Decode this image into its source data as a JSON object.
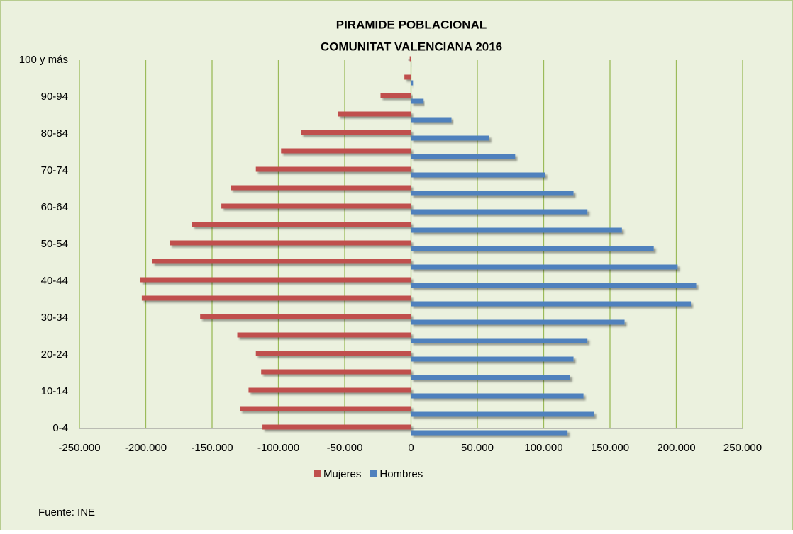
{
  "chart_data": {
    "type": "pyramid",
    "title": "PIRAMIDE POBLACIONAL",
    "subtitle": "COMUNITAT VALENCIANA 2016",
    "categories": [
      "0-4",
      null,
      "10-14",
      null,
      "20-24",
      null,
      "30-34",
      null,
      "40-44",
      null,
      "50-54",
      null,
      "60-64",
      null,
      "70-74",
      null,
      "80-84",
      null,
      "90-94",
      null,
      "100 y más"
    ],
    "series": [
      {
        "name": "Mujeres",
        "color": "#c0504d",
        "values": [
          -112000,
          -129000,
          -122500,
          -113000,
          -117000,
          -131000,
          -159000,
          -203000,
          -204000,
          -195000,
          -182000,
          -165000,
          -143000,
          -136000,
          -117000,
          -98000,
          -83000,
          -55000,
          -23000,
          -5000,
          -1000
        ]
      },
      {
        "name": "Hombres",
        "color": "#4f81bd",
        "values": [
          118000,
          138000,
          130000,
          120000,
          122500,
          133000,
          161000,
          211000,
          215000,
          201000,
          183000,
          159000,
          133000,
          122500,
          101000,
          78500,
          59000,
          30500,
          9500,
          1500,
          300
        ]
      }
    ],
    "xlim": [
      -250000,
      250000
    ],
    "xticks": [
      {
        "value": -250000,
        "label": "-250.000"
      },
      {
        "value": -200000,
        "label": "-200.000"
      },
      {
        "value": -150000,
        "label": "-150.000"
      },
      {
        "value": -100000,
        "label": "-100.000"
      },
      {
        "value": -50000,
        "label": "-50.000"
      },
      0,
      {
        "value": 50000,
        "label": "50.000"
      },
      {
        "value": 100000,
        "label": "100.000"
      },
      {
        "value": 150000,
        "label": "150.000"
      },
      {
        "value": 200000,
        "label": "200.000"
      },
      {
        "value": 250000,
        "label": "250.000"
      }
    ],
    "grid": true,
    "legend": "bottom",
    "source": "Fuente: INE"
  }
}
